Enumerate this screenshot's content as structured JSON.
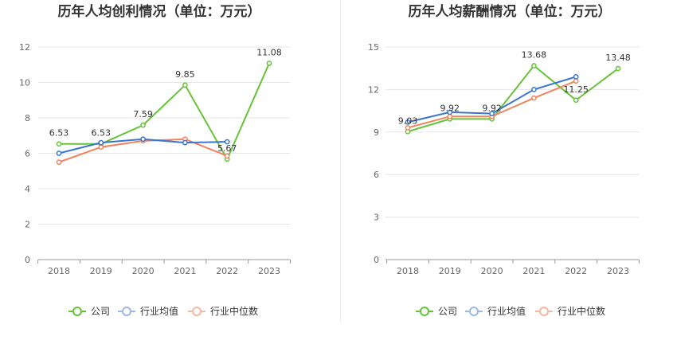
{
  "chart_data": [
    {
      "type": "line",
      "title": "历年人均创利情况（单位：万元）",
      "categories": [
        "2018",
        "2019",
        "2020",
        "2021",
        "2022",
        "2023"
      ],
      "ylim": [
        0,
        12
      ],
      "yticks": [
        0,
        2,
        4,
        6,
        8,
        10,
        12
      ],
      "ytick_labels": [
        "0",
        "2",
        "4",
        "6",
        "8",
        "10",
        "12"
      ],
      "series": [
        {
          "name": "公司",
          "color": "#67c23a",
          "values": [
            6.53,
            6.53,
            7.59,
            9.85,
            5.67,
            11.08
          ],
          "labels": [
            "6.53",
            "6.53",
            "7.59",
            "9.85",
            "5.67",
            "11.08"
          ]
        },
        {
          "name": "行业均值",
          "color": "#3a75d0",
          "values": [
            6.0,
            6.6,
            6.8,
            6.6,
            6.65,
            null
          ]
        },
        {
          "name": "行业中位数",
          "color": "#f0845d",
          "values": [
            5.5,
            6.35,
            6.7,
            6.8,
            5.85,
            null
          ]
        }
      ]
    },
    {
      "type": "line",
      "title": "历年人均薪酬情况（单位：万元）",
      "categories": [
        "2018",
        "2019",
        "2020",
        "2021",
        "2022",
        "2023"
      ],
      "ylim": [
        0,
        15
      ],
      "yticks": [
        0,
        3,
        6,
        9,
        12,
        15
      ],
      "ytick_labels": [
        "0",
        "3",
        "6",
        "9",
        "12",
        "15"
      ],
      "series": [
        {
          "name": "公司",
          "color": "#67c23a",
          "values": [
            9.03,
            9.92,
            9.92,
            13.68,
            11.25,
            13.48
          ],
          "labels": [
            "9.03",
            "9.92",
            "9.92",
            "13.68",
            "11.25",
            "13.48"
          ]
        },
        {
          "name": "行业均值",
          "color": "#3a75d0",
          "values": [
            9.7,
            10.4,
            10.3,
            12.0,
            12.9,
            null
          ]
        },
        {
          "name": "行业中位数",
          "color": "#f0845d",
          "values": [
            9.3,
            10.1,
            10.1,
            11.4,
            12.6,
            null
          ]
        }
      ]
    }
  ],
  "legend": {
    "items": [
      {
        "name": "公司",
        "color": "#67c23a",
        "fill": "#ffffff"
      },
      {
        "name": "行业均值",
        "color": "#9bb8e8",
        "fill": "#ffffff"
      },
      {
        "name": "行业中位数",
        "color": "#f6b8a0",
        "fill": "#ffffff"
      }
    ]
  }
}
